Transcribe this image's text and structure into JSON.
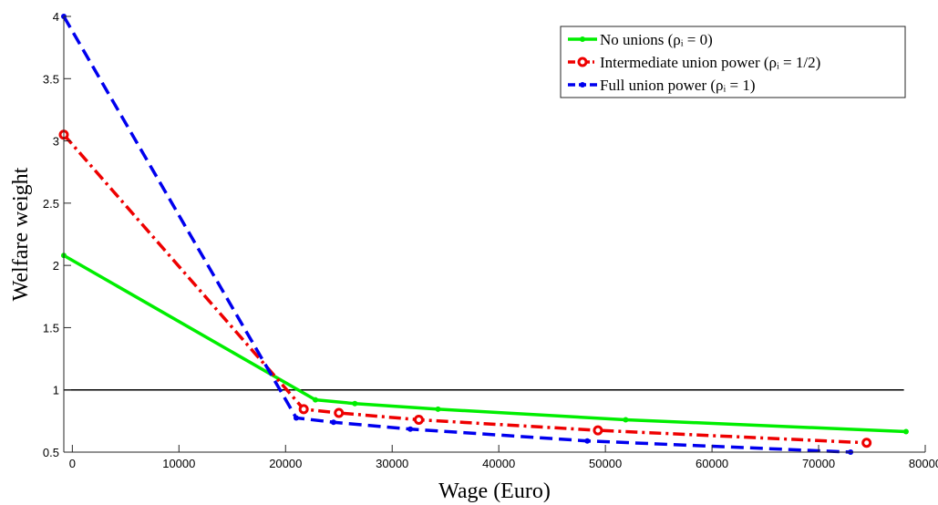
{
  "chart_data": {
    "type": "line",
    "title": "",
    "xlabel": "Wage (Euro)",
    "ylabel": "Welfare weight",
    "xlim": [
      -800,
      80000
    ],
    "ylim": [
      0.5,
      4
    ],
    "xticks": [
      0,
      10000,
      20000,
      30000,
      40000,
      50000,
      60000,
      70000,
      80000
    ],
    "yticks": [
      0.5,
      1,
      1.5,
      2,
      2.5,
      3,
      3.5,
      4
    ],
    "xtick_labels": [
      "0",
      "10000",
      "20000",
      "30000",
      "40000",
      "50000",
      "60000",
      "70000",
      "80000"
    ],
    "ytick_labels": [
      "0.5",
      "1",
      "1.5",
      "2",
      "2.5",
      "3",
      "3.5",
      "4"
    ],
    "grid": false,
    "legend_position": "top-right",
    "reference_line": {
      "y": 1,
      "x": [
        -800,
        78000
      ],
      "color": "#000000"
    },
    "series": [
      {
        "name": "No unions (ρᵢ = 0)",
        "color": "#00ee00",
        "dash": "solid",
        "marker": "dot",
        "x": [
          -800,
          22800,
          26500,
          34300,
          51900,
          78200
        ],
        "y": [
          2.08,
          0.92,
          0.89,
          0.845,
          0.76,
          0.665
        ]
      },
      {
        "name": "Intermediate union power (ρᵢ = 1/2)",
        "color": "#ee0000",
        "dash": "dashdot",
        "marker": "circle",
        "x": [
          -800,
          21700,
          25000,
          32500,
          49300,
          74500
        ],
        "y": [
          3.05,
          0.845,
          0.815,
          0.76,
          0.675,
          0.575
        ]
      },
      {
        "name": "Full union power (ρᵢ = 1)",
        "color": "#0000ee",
        "dash": "dashed",
        "marker": "dot",
        "x": [
          -800,
          21000,
          24500,
          31700,
          48300,
          73000
        ],
        "y": [
          4.0,
          0.775,
          0.74,
          0.685,
          0.59,
          0.5
        ]
      }
    ]
  }
}
